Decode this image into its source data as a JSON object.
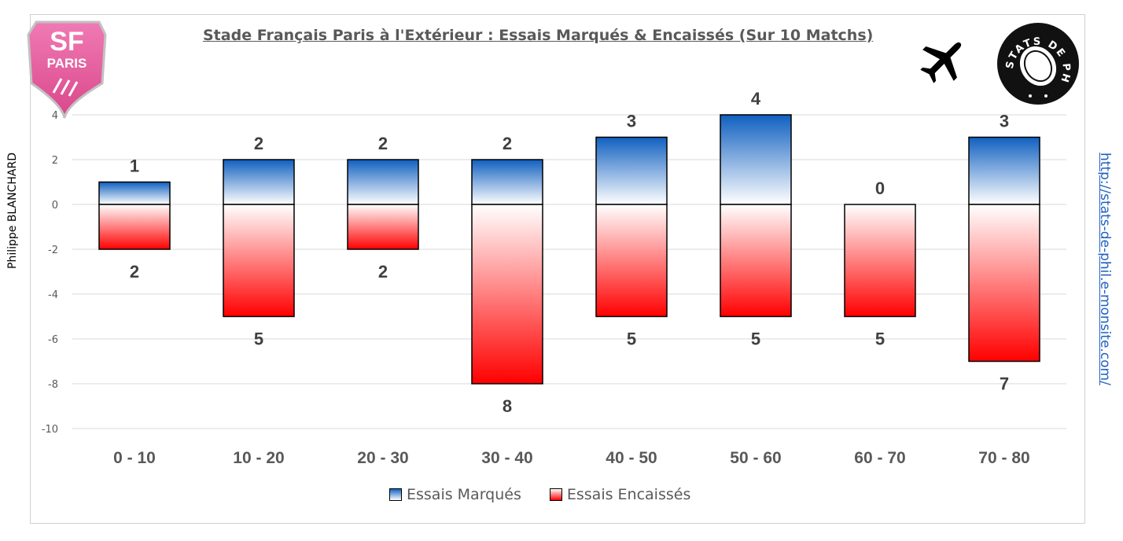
{
  "title": "Stade Français Paris à l'Extérieur : Essais Marqués & Encaissés (Sur 10 Matchs)",
  "credit": "Philippe BLANCHARD",
  "url": "http://stats-de-phil.e-monsite.com/",
  "logos": {
    "club_line1": "SF",
    "club_line2": "PARIS",
    "stats_logo_text": "STATS DE PHIL"
  },
  "colors": {
    "marques": "#1060c0",
    "encaisses": "#ff0000",
    "url": "#1f5fbf",
    "club_pink": "#e8559a"
  },
  "legend": {
    "marques": "Essais Marqués",
    "encaisses": "Essais Encaissés"
  },
  "chart_data": {
    "type": "bar",
    "categories": [
      "0 - 10",
      "10 - 20",
      "20 - 30",
      "30 - 40",
      "40 - 50",
      "50 - 60",
      "60 - 70",
      "70 - 80"
    ],
    "series": [
      {
        "name": "Essais Marqués",
        "values": [
          1,
          2,
          2,
          2,
          3,
          4,
          0,
          3
        ]
      },
      {
        "name": "Essais Encaissés",
        "values": [
          -2,
          -5,
          -2,
          -8,
          -5,
          -5,
          -5,
          -7
        ]
      }
    ],
    "data_labels": {
      "marques": [
        "1",
        "2",
        "2",
        "2",
        "3",
        "4",
        "0",
        "3"
      ],
      "encaisses": [
        "2",
        "5",
        "2",
        "8",
        "5",
        "5",
        "5",
        "7"
      ]
    },
    "yticks": [
      -10,
      -8,
      -6,
      -4,
      -2,
      0,
      2,
      4
    ],
    "ylim": [
      -10,
      4
    ],
    "grid": true,
    "legend_position": "bottom"
  }
}
